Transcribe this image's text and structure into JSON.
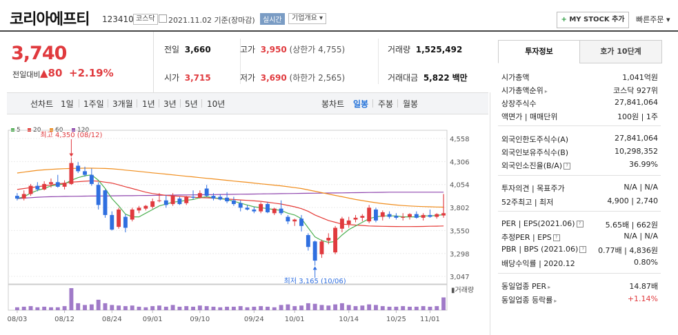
{
  "header": {
    "company_name": "코리아에프티",
    "code": "123410",
    "market_badge": "코스닥",
    "date_text": "2021.11.02  기준(장마감)",
    "realtime_label": "실시간",
    "company_info_label": "기업개요 ▾",
    "mystock_plus": "+",
    "mystock_label": "MY STOCK 추가",
    "quick_order_label": "빠른주문 ▾"
  },
  "quote": {
    "price": "3,740",
    "change_label": "전일대비",
    "change_value": "▲80",
    "change_pct": "+2.19%",
    "prev_close_label": "전일",
    "prev_close": "3,660",
    "open_label": "시가",
    "open": "3,715",
    "high_label": "고가",
    "high": "3,950",
    "upper_limit": "(상한가 4,755)",
    "low_label": "저가",
    "low": "3,690",
    "lower_limit": "(하한가 2,565)",
    "volume_label": "거래량",
    "volume": "1,525,492",
    "amount_label": "거래대금",
    "amount": "5,822",
    "amount_unit": "백만"
  },
  "period_bar": {
    "line_chart_label": "선차트",
    "line_periods": [
      "1일",
      "1주일",
      "3개월",
      "1년",
      "3년",
      "5년",
      "10년"
    ],
    "candle_chart_label": "봉차트",
    "candle_periods": [
      "일봉",
      "주봉",
      "월봉"
    ],
    "active_candle": "일봉"
  },
  "chart_data": {
    "type": "candlestick",
    "legend": [
      {
        "name": "5",
        "color": "#4caf50"
      },
      {
        "name": "20",
        "color": "#e53935"
      },
      {
        "name": "60",
        "color": "#f08c1a"
      },
      {
        "name": "120",
        "color": "#8e44ad"
      }
    ],
    "y_ticks": [
      "4,558",
      "4,306",
      "4,054",
      "3,802",
      "3,550",
      "3,298",
      "3,047"
    ],
    "ylim": [
      3047,
      4558
    ],
    "x_ticks": [
      "08/03",
      "08/12",
      "08/24",
      "09/01",
      "09/10",
      "09/24",
      "10/01",
      "10/14",
      "10/25",
      "11/01"
    ],
    "high_annotation": "최고 4,350 (08/12)",
    "low_annotation": "최저 3,165 (10/06)",
    "volume_label": "거래량",
    "colors": {
      "up": "#e03a3e",
      "down": "#2f6fe0"
    },
    "candles": [
      {
        "o": 3930,
        "h": 3960,
        "l": 3880,
        "c": 3900
      },
      {
        "o": 3900,
        "h": 3990,
        "l": 3880,
        "c": 3950
      },
      {
        "o": 3950,
        "h": 4060,
        "l": 3930,
        "c": 4040
      },
      {
        "o": 4040,
        "h": 4080,
        "l": 3980,
        "c": 4000
      },
      {
        "o": 4000,
        "h": 4090,
        "l": 3990,
        "c": 4060
      },
      {
        "o": 4060,
        "h": 4120,
        "l": 4020,
        "c": 4080
      },
      {
        "o": 4080,
        "h": 4160,
        "l": 4020,
        "c": 4030
      },
      {
        "o": 4030,
        "h": 4100,
        "l": 4000,
        "c": 4070
      },
      {
        "o": 4060,
        "h": 4350,
        "l": 4050,
        "c": 4290
      },
      {
        "o": 4260,
        "h": 4300,
        "l": 4180,
        "c": 4200
      },
      {
        "o": 4200,
        "h": 4250,
        "l": 4140,
        "c": 4160
      },
      {
        "o": 4160,
        "h": 4230,
        "l": 4040,
        "c": 4060
      },
      {
        "o": 4050,
        "h": 4080,
        "l": 3780,
        "c": 3830
      },
      {
        "o": 3990,
        "h": 4000,
        "l": 3690,
        "c": 3720
      },
      {
        "o": 3720,
        "h": 3760,
        "l": 3550,
        "c": 3560
      },
      {
        "o": 3590,
        "h": 3800,
        "l": 3570,
        "c": 3780
      },
      {
        "o": 3700,
        "h": 3730,
        "l": 3530,
        "c": 3580
      },
      {
        "o": 3670,
        "h": 3800,
        "l": 3650,
        "c": 3780
      },
      {
        "o": 3770,
        "h": 3820,
        "l": 3740,
        "c": 3800
      },
      {
        "o": 3790,
        "h": 3830,
        "l": 3770,
        "c": 3820
      },
      {
        "o": 3810,
        "h": 3900,
        "l": 3790,
        "c": 3870
      },
      {
        "o": 3880,
        "h": 3960,
        "l": 3860,
        "c": 3880
      },
      {
        "o": 3880,
        "h": 3940,
        "l": 3800,
        "c": 3830
      },
      {
        "o": 3840,
        "h": 3960,
        "l": 3820,
        "c": 3930
      },
      {
        "o": 3900,
        "h": 3920,
        "l": 3830,
        "c": 3840
      },
      {
        "o": 3850,
        "h": 3930,
        "l": 3830,
        "c": 3920
      },
      {
        "o": 3920,
        "h": 3990,
        "l": 3890,
        "c": 3910
      },
      {
        "o": 3910,
        "h": 3990,
        "l": 3900,
        "c": 3960
      },
      {
        "o": 4010,
        "h": 4050,
        "l": 3920,
        "c": 3930
      },
      {
        "o": 3930,
        "h": 3960,
        "l": 3880,
        "c": 3900
      },
      {
        "o": 3920,
        "h": 3950,
        "l": 3880,
        "c": 3890
      },
      {
        "o": 3910,
        "h": 3970,
        "l": 3850,
        "c": 3870
      },
      {
        "o": 3880,
        "h": 3920,
        "l": 3820,
        "c": 3840
      },
      {
        "o": 3850,
        "h": 3880,
        "l": 3760,
        "c": 3800
      },
      {
        "o": 3800,
        "h": 3830,
        "l": 3770,
        "c": 3780
      },
      {
        "o": 3780,
        "h": 3810,
        "l": 3740,
        "c": 3760
      },
      {
        "o": 3760,
        "h": 3860,
        "l": 3740,
        "c": 3840
      },
      {
        "o": 3840,
        "h": 3860,
        "l": 3740,
        "c": 3750
      },
      {
        "o": 3740,
        "h": 3800,
        "l": 3720,
        "c": 3790
      },
      {
        "o": 3790,
        "h": 3880,
        "l": 3720,
        "c": 3740
      },
      {
        "o": 3700,
        "h": 3720,
        "l": 3620,
        "c": 3650
      },
      {
        "o": 3650,
        "h": 3680,
        "l": 3600,
        "c": 3670
      },
      {
        "o": 3680,
        "h": 3720,
        "l": 3540,
        "c": 3600
      },
      {
        "o": 3500,
        "h": 3520,
        "l": 3330,
        "c": 3370
      },
      {
        "o": 3430,
        "h": 3440,
        "l": 3165,
        "c": 3220
      },
      {
        "o": 3290,
        "h": 3450,
        "l": 3250,
        "c": 3430
      },
      {
        "o": 3440,
        "h": 3520,
        "l": 3400,
        "c": 3470
      },
      {
        "o": 3310,
        "h": 3600,
        "l": 3290,
        "c": 3580
      },
      {
        "o": 3570,
        "h": 3700,
        "l": 3530,
        "c": 3680
      },
      {
        "o": 3620,
        "h": 3700,
        "l": 3580,
        "c": 3660
      },
      {
        "o": 3670,
        "h": 3720,
        "l": 3640,
        "c": 3690
      },
      {
        "o": 3690,
        "h": 3730,
        "l": 3650,
        "c": 3710
      },
      {
        "o": 3650,
        "h": 3830,
        "l": 3630,
        "c": 3800
      },
      {
        "o": 3780,
        "h": 3800,
        "l": 3640,
        "c": 3660
      },
      {
        "o": 3700,
        "h": 3770,
        "l": 3660,
        "c": 3750
      },
      {
        "o": 3730,
        "h": 3760,
        "l": 3680,
        "c": 3700
      },
      {
        "o": 3710,
        "h": 3740,
        "l": 3670,
        "c": 3690
      },
      {
        "o": 3690,
        "h": 3740,
        "l": 3660,
        "c": 3700
      },
      {
        "o": 3700,
        "h": 3740,
        "l": 3670,
        "c": 3730
      },
      {
        "o": 3730,
        "h": 3760,
        "l": 3680,
        "c": 3690
      },
      {
        "o": 3690,
        "h": 3740,
        "l": 3660,
        "c": 3720
      },
      {
        "o": 3720,
        "h": 3780,
        "l": 3690,
        "c": 3700
      },
      {
        "o": 3700,
        "h": 3740,
        "l": 3680,
        "c": 3730
      },
      {
        "o": 3715,
        "h": 3950,
        "l": 3690,
        "c": 3740
      }
    ],
    "volumes": [
      5,
      6,
      7,
      5,
      6,
      5,
      5,
      7,
      38,
      12,
      9,
      10,
      18,
      12,
      9,
      8,
      7,
      8,
      6,
      5,
      7,
      8,
      6,
      9,
      6,
      7,
      6,
      8,
      7,
      6,
      5,
      6,
      6,
      7,
      5,
      6,
      7,
      6,
      5,
      9,
      10,
      7,
      8,
      12,
      11,
      9,
      8,
      10,
      12,
      9,
      7,
      8,
      10,
      9,
      7,
      6,
      6,
      7,
      6,
      6,
      7,
      6,
      7,
      22
    ],
    "ma5": [
      3900,
      3920,
      3960,
      3990,
      4010,
      4040,
      4050,
      4060,
      4100,
      4130,
      4150,
      4160,
      4100,
      4010,
      3900,
      3820,
      3730,
      3700,
      3700,
      3740,
      3780,
      3820,
      3840,
      3860,
      3870,
      3880,
      3890,
      3910,
      3920,
      3910,
      3900,
      3890,
      3870,
      3850,
      3830,
      3810,
      3800,
      3790,
      3780,
      3770,
      3740,
      3720,
      3680,
      3580,
      3480,
      3440,
      3420,
      3430,
      3500,
      3560,
      3600,
      3640,
      3680,
      3700,
      3710,
      3710,
      3710,
      3700,
      3700,
      3700,
      3710,
      3710,
      3715,
      3725
    ],
    "ma20": [
      4000,
      4010,
      4020,
      4030,
      4040,
      4050,
      4060,
      4070,
      4080,
      4085,
      4090,
      4095,
      4090,
      4080,
      4070,
      4050,
      4030,
      4010,
      3990,
      3970,
      3955,
      3945,
      3935,
      3930,
      3925,
      3920,
      3915,
      3910,
      3908,
      3905,
      3900,
      3895,
      3890,
      3885,
      3880,
      3875,
      3870,
      3860,
      3850,
      3840,
      3825,
      3810,
      3790,
      3760,
      3720,
      3690,
      3660,
      3640,
      3620,
      3615,
      3610,
      3605,
      3600,
      3598,
      3596,
      3595,
      3594,
      3593,
      3593,
      3594,
      3595,
      3597,
      3598,
      3600
    ],
    "ma60": [
      4180,
      4190,
      4200,
      4210,
      4215,
      4220,
      4225,
      4228,
      4230,
      4232,
      4233,
      4233,
      4232,
      4230,
      4226,
      4220,
      4212,
      4205,
      4198,
      4190,
      4182,
      4175,
      4168,
      4160,
      4152,
      4145,
      4138,
      4130,
      4122,
      4115,
      4108,
      4100,
      4092,
      4085,
      4078,
      4070,
      4062,
      4055,
      4047,
      4040,
      4030,
      4020,
      4010,
      3995,
      3980,
      3965,
      3950,
      3935,
      3920,
      3905,
      3890,
      3878,
      3866,
      3855,
      3845,
      3837,
      3830,
      3824,
      3819,
      3815,
      3812,
      3810,
      3808,
      3806
    ],
    "ma120": [
      3900,
      3905,
      3910,
      3915,
      3918,
      3920,
      3922,
      3924,
      3925,
      3926,
      3927,
      3928,
      3928,
      3929,
      3930,
      3931,
      3932,
      3932,
      3933,
      3934,
      3935,
      3936,
      3937,
      3938,
      3939,
      3940,
      3941,
      3942,
      3943,
      3944,
      3945,
      3946,
      3947,
      3948,
      3949,
      3950,
      3951,
      3952,
      3953,
      3954,
      3955,
      3956,
      3957,
      3958,
      3959,
      3960,
      3961,
      3962,
      3963,
      3964,
      3965,
      3966,
      3967,
      3968,
      3969,
      3970,
      3970,
      3970,
      3970,
      3970,
      3970,
      3970,
      3970,
      3970
    ]
  },
  "tabs": {
    "invest_info": "투자정보",
    "order_book": "호가 10단계"
  },
  "invest": {
    "market_cap_label": "시가총액",
    "market_cap": "1,041억원",
    "market_cap_rank_label": "시가총액순위",
    "market_cap_rank": "코스닥 927위",
    "shares_label": "상장주식수",
    "shares": "27,841,064",
    "face_label": "액면가 | 매매단위",
    "face": "100원 | 1주",
    "foreign_limit_label": "외국인한도주식수(A)",
    "foreign_limit": "27,841,064",
    "foreign_hold_label": "외국인보유주식수(B)",
    "foreign_hold": "10,298,352",
    "foreign_ratio_label": "외국인소진율(B/A)",
    "foreign_ratio": "36.99%",
    "opinion_label": "투자의견 | 목표주가",
    "opinion": "N/A | N/A",
    "week52_label": "52주최고 | 최저",
    "week52": "4,900 | 2,740",
    "per_label": "PER | EPS(2021.06)",
    "per": "5.65배 | 662원",
    "est_per_label": "추정PER | EPS",
    "est_per": "N/A | N/A",
    "pbr_label": "PBR | BPS (2021.06)",
    "pbr": "0.77배 | 4,836원",
    "div_label": "배당수익률 | 2020.12",
    "div": "0.80%",
    "sector_per_label": "동일업종 PER",
    "sector_per": "14.87배",
    "sector_chg_label": "동일업종 등락률",
    "sector_chg": "+1.14%"
  }
}
